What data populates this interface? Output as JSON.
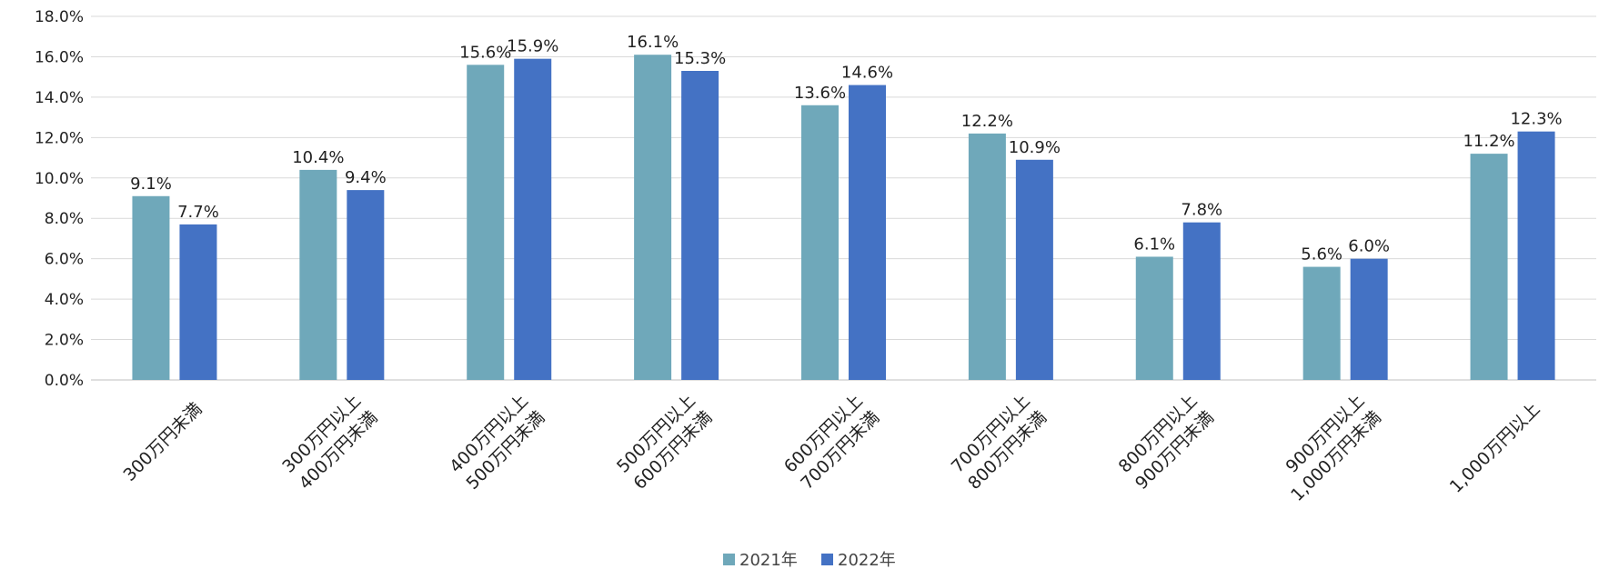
{
  "chart_data": {
    "type": "bar",
    "title": "",
    "xlabel": "",
    "ylabel": "",
    "ylim": [
      0,
      18
    ],
    "yticks": [
      "0.0%",
      "2.0%",
      "4.0%",
      "6.0%",
      "8.0%",
      "10.0%",
      "12.0%",
      "14.0%",
      "16.0%",
      "18.0%"
    ],
    "grid": true,
    "legend_position": "bottom",
    "categories": [
      [
        "300万円未満"
      ],
      [
        "300万円以上",
        "400万円未満"
      ],
      [
        "400万円以上",
        "500万円未満"
      ],
      [
        "500万円以上",
        "600万円未満"
      ],
      [
        "600万円以上",
        "700万円未満"
      ],
      [
        "700万円以上",
        "800万円未満"
      ],
      [
        "800万円以上",
        "900万円未満"
      ],
      [
        "900万円以上",
        "1,000万円未満"
      ],
      [
        "1,000万円以上"
      ]
    ],
    "series": [
      {
        "name": "2021年",
        "color": "#6fa8ba",
        "values": [
          9.1,
          10.4,
          15.6,
          16.1,
          13.6,
          12.2,
          6.1,
          5.6,
          11.2
        ],
        "labels": [
          "9.1%",
          "10.4%",
          "15.6%",
          "16.1%",
          "13.6%",
          "12.2%",
          "6.1%",
          "5.6%",
          "11.2%"
        ]
      },
      {
        "name": "2022年",
        "color": "#4472c4",
        "values": [
          7.7,
          9.4,
          15.9,
          15.3,
          14.6,
          10.9,
          7.8,
          6.0,
          12.3
        ],
        "labels": [
          "7.7%",
          "9.4%",
          "15.9%",
          "15.3%",
          "14.6%",
          "10.9%",
          "7.8%",
          "6.0%",
          "12.3%"
        ]
      }
    ],
    "gridline_color": "#d9d9d9"
  }
}
